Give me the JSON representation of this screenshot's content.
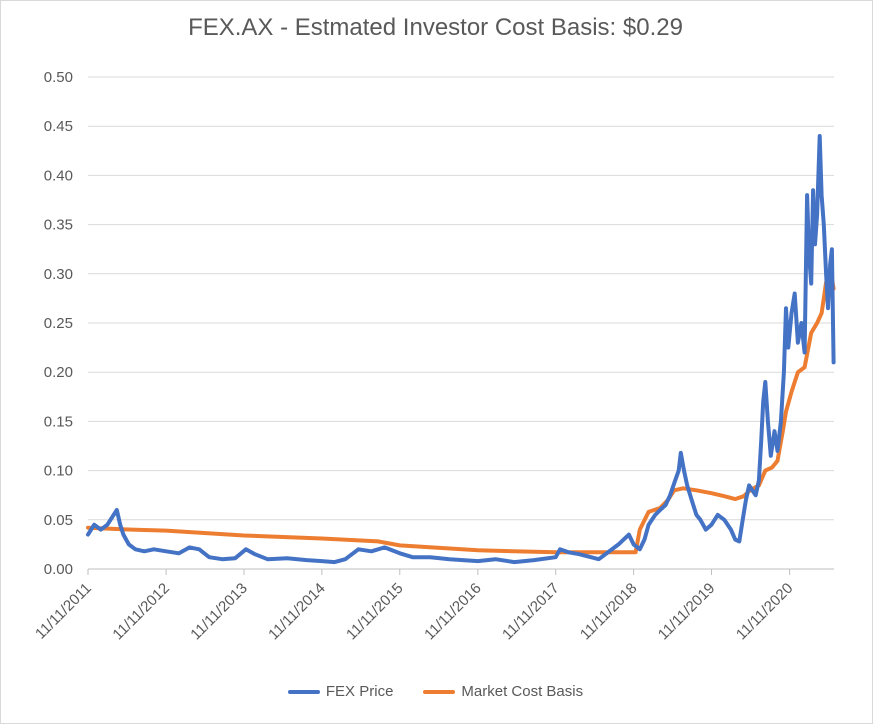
{
  "chart_data": {
    "type": "line",
    "title": "FEX.AX - Estmated Investor Cost Basis:  $0.29",
    "xlabel": "",
    "ylabel": "",
    "ylim": [
      0,
      0.5
    ],
    "y_ticks": [
      "0.00",
      "0.05",
      "0.10",
      "0.15",
      "0.20",
      "0.25",
      "0.30",
      "0.35",
      "0.40",
      "0.45",
      "0.50"
    ],
    "x_ticks": [
      "11/11/2011",
      "11/11/2012",
      "11/11/2013",
      "11/11/2014",
      "11/11/2015",
      "11/11/2016",
      "11/11/2017",
      "11/11/2018",
      "11/11/2019",
      "11/11/2020"
    ],
    "grid": true,
    "legend_position": "bottom",
    "series": [
      {
        "name": "FEX Price",
        "color": "#4472C4",
        "points": [
          [
            "2011-11-11",
            0.035
          ],
          [
            "2011-12-10",
            0.045
          ],
          [
            "2012-01-10",
            0.04
          ],
          [
            "2012-02-10",
            0.045
          ],
          [
            "2012-03-10",
            0.055
          ],
          [
            "2012-03-25",
            0.06
          ],
          [
            "2012-04-10",
            0.045
          ],
          [
            "2012-04-25",
            0.035
          ],
          [
            "2012-05-20",
            0.025
          ],
          [
            "2012-06-20",
            0.02
          ],
          [
            "2012-08-01",
            0.018
          ],
          [
            "2012-09-15",
            0.02
          ],
          [
            "2012-11-11",
            0.018
          ],
          [
            "2013-01-10",
            0.016
          ],
          [
            "2013-03-01",
            0.022
          ],
          [
            "2013-04-15",
            0.02
          ],
          [
            "2013-06-01",
            0.012
          ],
          [
            "2013-08-01",
            0.01
          ],
          [
            "2013-10-01",
            0.011
          ],
          [
            "2013-11-20",
            0.02
          ],
          [
            "2014-01-01",
            0.015
          ],
          [
            "2014-03-01",
            0.01
          ],
          [
            "2014-06-01",
            0.011
          ],
          [
            "2014-09-01",
            0.009
          ],
          [
            "2014-11-11",
            0.008
          ],
          [
            "2015-01-10",
            0.007
          ],
          [
            "2015-03-01",
            0.01
          ],
          [
            "2015-05-01",
            0.02
          ],
          [
            "2015-07-01",
            0.018
          ],
          [
            "2015-09-01",
            0.022
          ],
          [
            "2015-11-11",
            0.016
          ],
          [
            "2016-01-10",
            0.012
          ],
          [
            "2016-04-01",
            0.012
          ],
          [
            "2016-07-01",
            0.01
          ],
          [
            "2016-11-11",
            0.008
          ],
          [
            "2017-02-01",
            0.01
          ],
          [
            "2017-05-01",
            0.007
          ],
          [
            "2017-08-01",
            0.009
          ],
          [
            "2017-11-11",
            0.012
          ],
          [
            "2017-12-01",
            0.02
          ],
          [
            "2018-01-10",
            0.017
          ],
          [
            "2018-03-01",
            0.015
          ],
          [
            "2018-06-01",
            0.01
          ],
          [
            "2018-09-01",
            0.025
          ],
          [
            "2018-10-20",
            0.035
          ],
          [
            "2018-11-11",
            0.025
          ],
          [
            "2018-12-10",
            0.02
          ],
          [
            "2019-01-01",
            0.03
          ],
          [
            "2019-01-20",
            0.045
          ],
          [
            "2019-02-20",
            0.055
          ],
          [
            "2019-03-15",
            0.06
          ],
          [
            "2019-04-10",
            0.065
          ],
          [
            "2019-05-01",
            0.075
          ],
          [
            "2019-05-25",
            0.09
          ],
          [
            "2019-06-10",
            0.1
          ],
          [
            "2019-06-20",
            0.118
          ],
          [
            "2019-07-05",
            0.1
          ],
          [
            "2019-07-20",
            0.085
          ],
          [
            "2019-08-10",
            0.07
          ],
          [
            "2019-09-01",
            0.055
          ],
          [
            "2019-09-20",
            0.05
          ],
          [
            "2019-10-15",
            0.04
          ],
          [
            "2019-11-11",
            0.045
          ],
          [
            "2019-12-10",
            0.055
          ],
          [
            "2020-01-10",
            0.05
          ],
          [
            "2020-02-10",
            0.04
          ],
          [
            "2020-03-01",
            0.03
          ],
          [
            "2020-03-20",
            0.028
          ],
          [
            "2020-04-05",
            0.05
          ],
          [
            "2020-04-20",
            0.07
          ],
          [
            "2020-05-05",
            0.085
          ],
          [
            "2020-05-20",
            0.08
          ],
          [
            "2020-06-05",
            0.075
          ],
          [
            "2020-06-20",
            0.09
          ],
          [
            "2020-07-01",
            0.13
          ],
          [
            "2020-07-10",
            0.17
          ],
          [
            "2020-07-20",
            0.19
          ],
          [
            "2020-08-01",
            0.15
          ],
          [
            "2020-08-15",
            0.115
          ],
          [
            "2020-09-01",
            0.14
          ],
          [
            "2020-09-15",
            0.12
          ],
          [
            "2020-10-01",
            0.15
          ],
          [
            "2020-10-15",
            0.2
          ],
          [
            "2020-10-25",
            0.265
          ],
          [
            "2020-11-05",
            0.225
          ],
          [
            "2020-11-20",
            0.26
          ],
          [
            "2020-12-05",
            0.28
          ],
          [
            "2020-12-20",
            0.23
          ],
          [
            "2021-01-05",
            0.25
          ],
          [
            "2021-01-20",
            0.22
          ],
          [
            "2021-02-01",
            0.38
          ],
          [
            "2021-02-10",
            0.32
          ],
          [
            "2021-02-20",
            0.29
          ],
          [
            "2021-03-01",
            0.385
          ],
          [
            "2021-03-10",
            0.33
          ],
          [
            "2021-03-20",
            0.36
          ],
          [
            "2021-04-01",
            0.44
          ],
          [
            "2021-04-10",
            0.38
          ],
          [
            "2021-04-20",
            0.35
          ],
          [
            "2021-05-01",
            0.3
          ],
          [
            "2021-05-10",
            0.265
          ],
          [
            "2021-05-20",
            0.31
          ],
          [
            "2021-05-28",
            0.325
          ],
          [
            "2021-06-05",
            0.21
          ]
        ]
      },
      {
        "name": "Market Cost Basis",
        "color": "#ED7D31",
        "points": [
          [
            "2011-11-11",
            0.042
          ],
          [
            "2012-06-01",
            0.04
          ],
          [
            "2012-11-11",
            0.039
          ],
          [
            "2013-11-11",
            0.034
          ],
          [
            "2014-11-11",
            0.031
          ],
          [
            "2015-08-01",
            0.028
          ],
          [
            "2015-11-11",
            0.024
          ],
          [
            "2016-11-11",
            0.019
          ],
          [
            "2017-11-11",
            0.017
          ],
          [
            "2018-11-01",
            0.017
          ],
          [
            "2018-11-20",
            0.017
          ],
          [
            "2018-12-10",
            0.04
          ],
          [
            "2019-01-20",
            0.058
          ],
          [
            "2019-03-15",
            0.062
          ],
          [
            "2019-04-20",
            0.07
          ],
          [
            "2019-05-20",
            0.08
          ],
          [
            "2019-07-01",
            0.082
          ],
          [
            "2019-09-01",
            0.08
          ],
          [
            "2019-11-11",
            0.077
          ],
          [
            "2020-01-10",
            0.074
          ],
          [
            "2020-03-01",
            0.071
          ],
          [
            "2020-04-10",
            0.074
          ],
          [
            "2020-05-10",
            0.08
          ],
          [
            "2020-06-20",
            0.085
          ],
          [
            "2020-07-20",
            0.1
          ],
          [
            "2020-08-20",
            0.103
          ],
          [
            "2020-09-15",
            0.11
          ],
          [
            "2020-10-10",
            0.14
          ],
          [
            "2020-10-25",
            0.16
          ],
          [
            "2020-11-20",
            0.18
          ],
          [
            "2020-12-20",
            0.2
          ],
          [
            "2021-01-20",
            0.205
          ],
          [
            "2021-02-20",
            0.24
          ],
          [
            "2021-03-20",
            0.25
          ],
          [
            "2021-04-10",
            0.26
          ],
          [
            "2021-04-20",
            0.275
          ],
          [
            "2021-04-30",
            0.29
          ],
          [
            "2021-05-10",
            0.3
          ],
          [
            "2021-05-28",
            0.295
          ],
          [
            "2021-06-05",
            0.285
          ]
        ]
      }
    ]
  }
}
